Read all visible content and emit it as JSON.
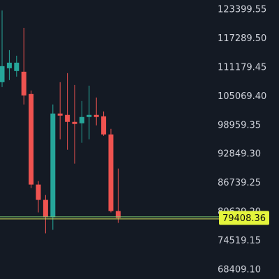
{
  "chart_data": {
    "type": "candlestick",
    "up_color": "#26a69a",
    "down_color": "#ef5350",
    "ylim": [
      66495,
      125461
    ],
    "yticks": [
      123399.55,
      {
        "value": 117289.5,
        "label": "117289.50"
      },
      111179.45,
      {
        "value": 105069.4,
        "label": "105069.40"
      },
      98959.35,
      {
        "value": 92849.3,
        "label": "92849.30"
      },
      86739.25,
      {
        "value": 80629.2,
        "label": "80629.20"
      },
      74519.15,
      {
        "value": 68409.1,
        "label": "68409.10"
      }
    ],
    "last_price": 79408.36,
    "candles": [
      {
        "open": 108091,
        "high": 123253,
        "low": 107061,
        "close": 111477
      },
      {
        "open": 111035,
        "high": 114863,
        "low": 108533,
        "close": 112213
      },
      {
        "open": 110447,
        "high": 113685,
        "low": 109269,
        "close": 112213
      },
      {
        "open": 110299,
        "high": 119573,
        "low": 103381,
        "close": 105295
      },
      {
        "open": 105589,
        "high": 106325,
        "low": 85717,
        "close": 86453
      },
      {
        "open": 86453,
        "high": 87189,
        "low": 80565,
        "close": 83215
      },
      {
        "open": 83215,
        "high": 84245,
        "low": 76149,
        "close": 79535
      },
      {
        "open": 79535,
        "high": 103381,
        "low": 76885,
        "close": 101467
      },
      {
        "open": 101467,
        "high": 108091,
        "low": 96021,
        "close": 101026
      },
      {
        "open": 101173,
        "high": 110005,
        "low": 93813,
        "close": 99701
      },
      {
        "open": 99701,
        "high": 107503,
        "low": 90869,
        "close": 99259
      },
      {
        "open": 99407,
        "high": 104117,
        "low": 95285,
        "close": 100731
      },
      {
        "open": 100731,
        "high": 107355,
        "low": 96021,
        "close": 101173
      },
      {
        "open": 101173,
        "high": 104853,
        "low": 98965,
        "close": 100731
      },
      {
        "open": 100879,
        "high": 101909,
        "low": 96757,
        "close": 97051
      },
      {
        "open": 97051,
        "high": 98229,
        "low": 80565,
        "close": 80859
      },
      {
        "open": 80859,
        "high": 89839,
        "low": 78357,
        "close": 79408.36
      }
    ]
  }
}
